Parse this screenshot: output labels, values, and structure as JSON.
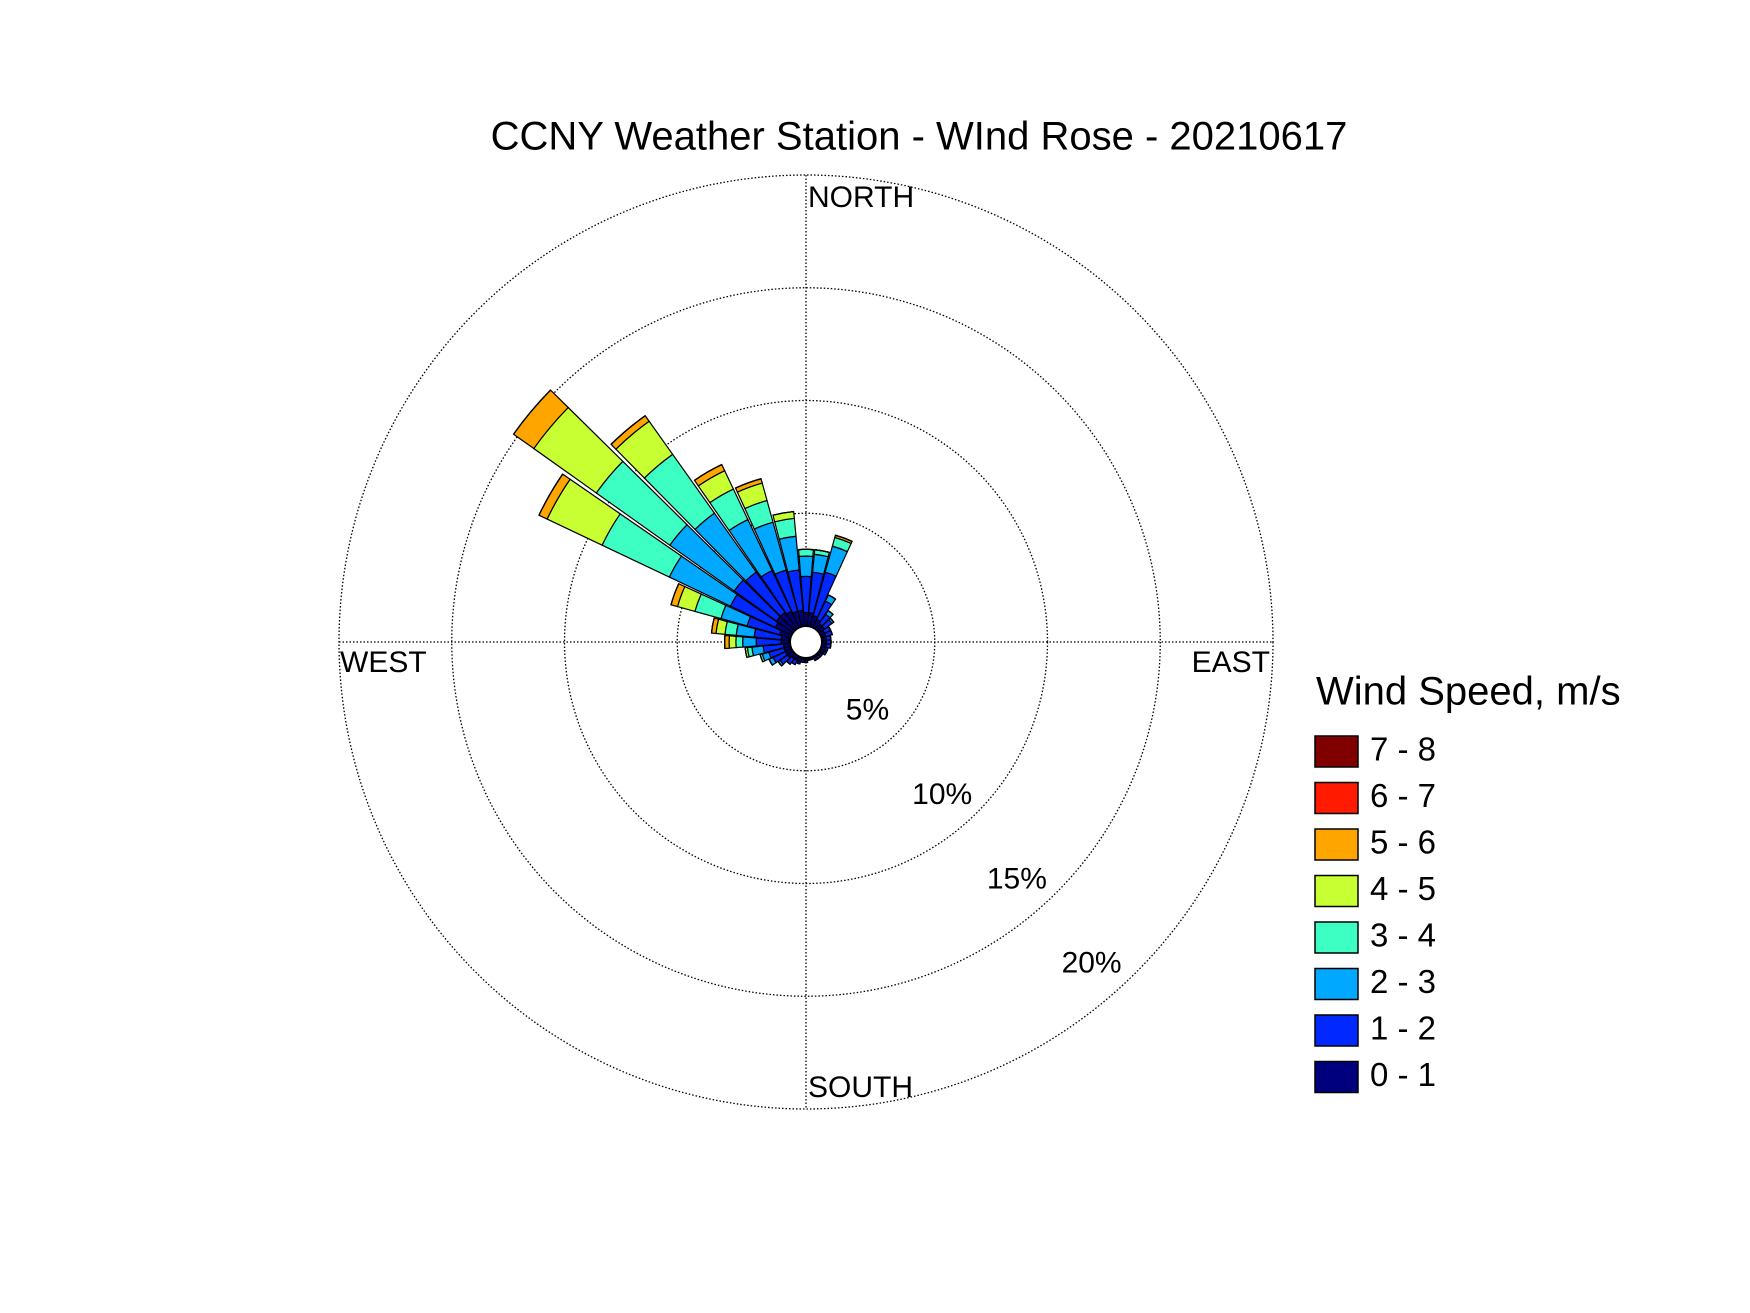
{
  "chart_data": {
    "type": "windrose",
    "title": "CCNY Weather Station - WInd Rose - 20210617",
    "compass": {
      "north": "NORTH",
      "east": "EAST",
      "south": "SOUTH",
      "west": "WEST"
    },
    "legend_title": "Wind Speed, m/s",
    "x": [
      0,
      10,
      20,
      30,
      40,
      50,
      60,
      70,
      80,
      90,
      100,
      110,
      120,
      130,
      140,
      150,
      160,
      170,
      180,
      190,
      200,
      210,
      220,
      230,
      240,
      250,
      260,
      270,
      280,
      290,
      300,
      310,
      320,
      330,
      340,
      350
    ],
    "rlim": [
      0,
      20
    ],
    "rticks": [
      {
        "value": 5,
        "label": "5%"
      },
      {
        "value": 10,
        "label": "10%"
      },
      {
        "value": 15,
        "label": "15%"
      },
      {
        "value": 20,
        "label": "20%"
      }
    ],
    "grid": true,
    "series": [
      {
        "name": "7 - 8",
        "color": "#800000",
        "values": [
          0,
          0,
          0,
          0,
          0,
          0,
          0,
          0,
          0,
          0,
          0,
          0,
          0,
          0,
          0,
          0,
          0,
          0,
          0,
          0,
          0,
          0,
          0,
          0,
          0,
          0,
          0,
          0,
          0,
          0,
          0,
          0,
          0,
          0,
          0,
          0
        ]
      },
      {
        "name": "6 - 7",
        "color": "#ff1a00",
        "values": [
          0,
          0,
          0,
          0,
          0,
          0,
          0,
          0,
          0,
          0,
          0,
          0,
          0,
          0,
          0,
          0,
          0,
          0,
          0,
          0,
          0,
          0,
          0,
          0,
          0,
          0,
          0,
          0,
          0,
          0,
          0,
          0,
          0,
          0,
          0,
          0
        ]
      },
      {
        "name": "5 - 6",
        "color": "#ffa500",
        "values": [
          0,
          0,
          0.1,
          0,
          0,
          0,
          0,
          0,
          0,
          0,
          0,
          0,
          0,
          0,
          0,
          0,
          0,
          0,
          0,
          0,
          0,
          0,
          0,
          0,
          0,
          0,
          0,
          0.2,
          0.2,
          0.3,
          0.4,
          1.1,
          0.3,
          0.3,
          0.2,
          0
        ]
      },
      {
        "name": "4 - 5",
        "color": "#c8ff32",
        "values": [
          0,
          0,
          0,
          0,
          0,
          0,
          0,
          0,
          0,
          0,
          0,
          0,
          0,
          0,
          0,
          0,
          0,
          0,
          0,
          0,
          0,
          0,
          0,
          0,
          0,
          0,
          0.1,
          0.3,
          0.4,
          0.8,
          2.7,
          3.4,
          1.8,
          0.9,
          0.8,
          0.3
        ]
      },
      {
        "name": "3 - 4",
        "color": "#3dffc3",
        "values": [
          0.3,
          0.2,
          0.4,
          0,
          0,
          0,
          0,
          0,
          0,
          0,
          0,
          0,
          0,
          0,
          0,
          0,
          0,
          0,
          0,
          0,
          0,
          0,
          0,
          0,
          0,
          0.1,
          0.2,
          0.3,
          0.5,
          1.2,
          3.3,
          4.0,
          3.2,
          1.5,
          1.0,
          0.8
        ]
      },
      {
        "name": "2 - 3",
        "color": "#00a8ff",
        "values": [
          0.9,
          0.8,
          1.2,
          0.3,
          0.2,
          0.1,
          0,
          0,
          0,
          0,
          0,
          0,
          0,
          0,
          0,
          0,
          0,
          0,
          0,
          0,
          0,
          0,
          0,
          0.1,
          0.2,
          0.3,
          0.5,
          0.6,
          0.8,
          1.2,
          3.0,
          3.5,
          3.2,
          2.5,
          2.2,
          1.5
        ]
      },
      {
        "name": "1 - 2",
        "color": "#0028ff",
        "values": [
          1.6,
          1.8,
          2.0,
          0.9,
          0.5,
          0.4,
          0.3,
          0.3,
          0.2,
          0.2,
          0.2,
          0.1,
          0.1,
          0.1,
          0.1,
          0.1,
          0,
          0,
          0.1,
          0.1,
          0.1,
          0.2,
          0.3,
          0.4,
          0.6,
          0.7,
          0.9,
          1.1,
          1.2,
          1.5,
          2.2,
          2.3,
          2.2,
          2.0,
          1.9,
          1.8
        ]
      },
      {
        "name": "0 - 1",
        "color": "#00007f",
        "values": [
          0.6,
          0.6,
          0.5,
          0.4,
          0.3,
          0.3,
          0.2,
          0.2,
          0.2,
          0.2,
          0.2,
          0.2,
          0.2,
          0.1,
          0.1,
          0.1,
          0.1,
          0.1,
          0.1,
          0.1,
          0.2,
          0.2,
          0.2,
          0.3,
          0.3,
          0.3,
          0.3,
          0.4,
          0.4,
          0.5,
          0.8,
          0.9,
          0.9,
          0.8,
          0.7,
          0.7
        ]
      }
    ]
  }
}
